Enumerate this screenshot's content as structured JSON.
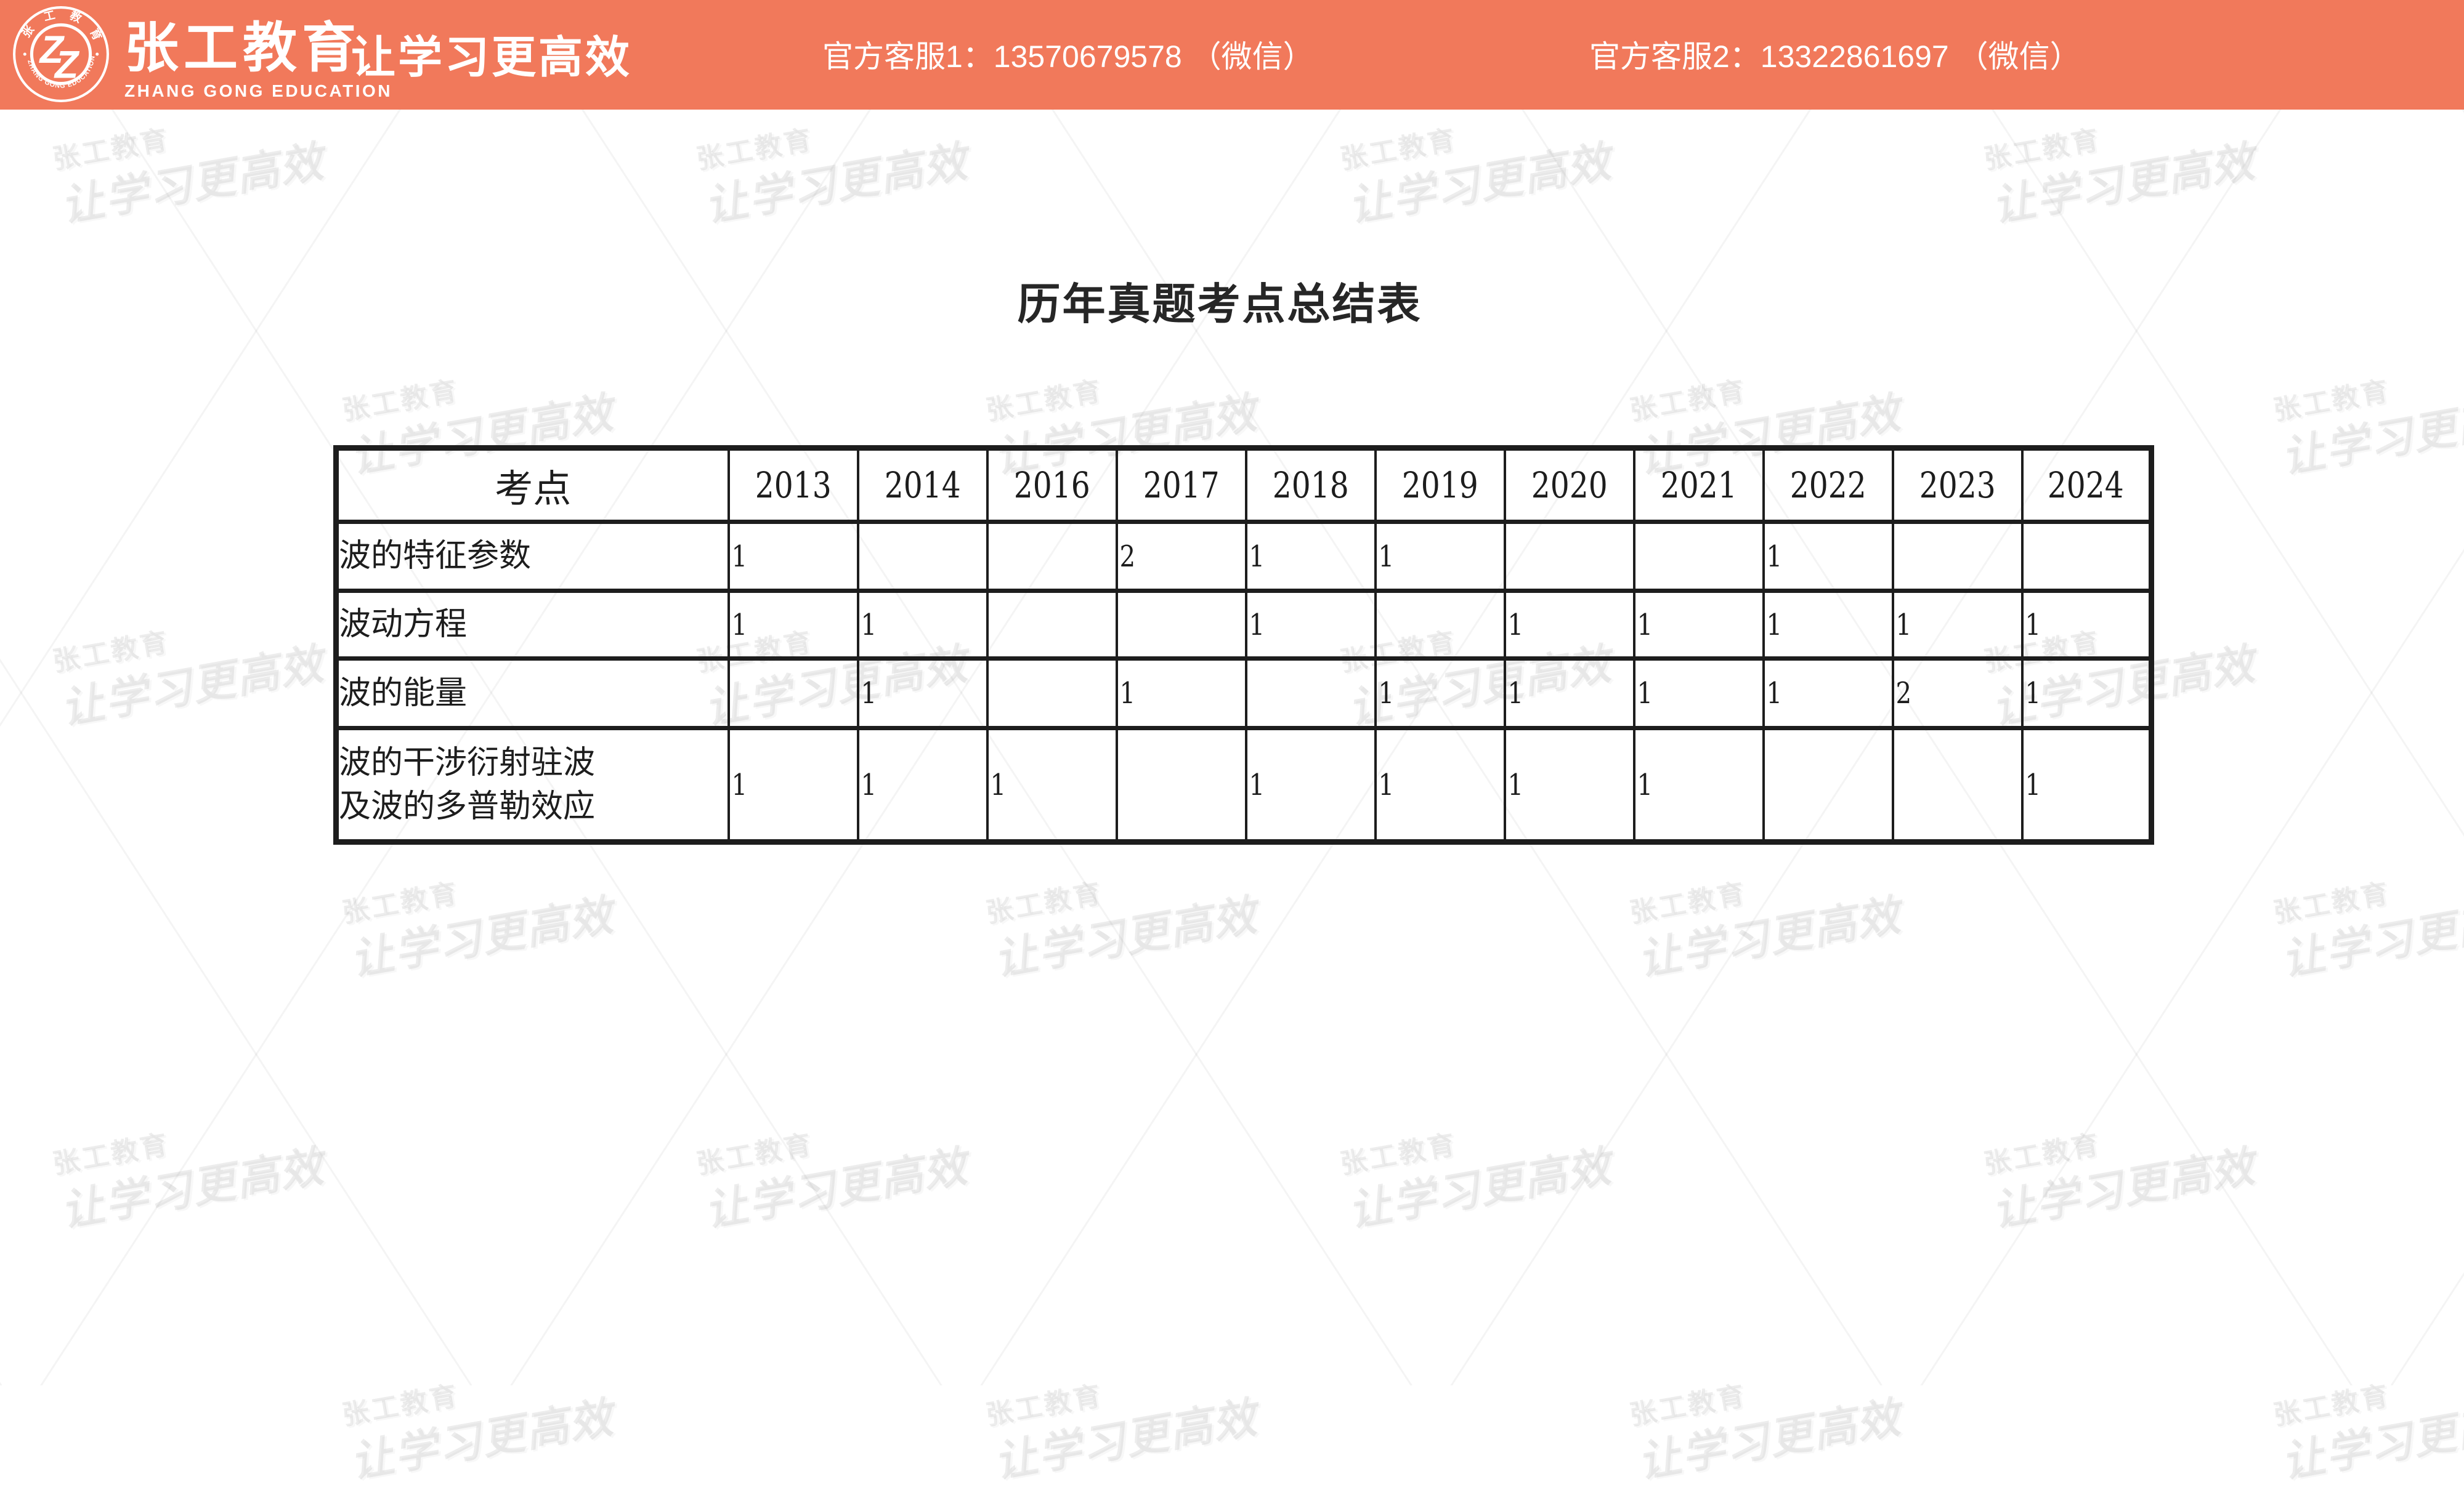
{
  "header": {
    "bg_color": "#F1795B",
    "logo_monogram": "ZZ",
    "logo_arc_top": "张 工 教 育",
    "logo_arc_bottom": "ZHANG GONG EDUCATION",
    "brand_cn": "张工教育",
    "brand_en": "ZHANG GONG EDUCATION",
    "brand_slogan": "让学习更高效",
    "service1": "官方客服1：13570679578 （微信）",
    "service2": "官方客服2：13322861697 （微信）"
  },
  "title": "历年真题考点总结表",
  "watermark": {
    "line1": "张工教育",
    "line2": "让学习更高效"
  },
  "table": {
    "header_label": "考点",
    "years": [
      "2013",
      "2014",
      "2016",
      "2017",
      "2018",
      "2019",
      "2020",
      "2021",
      "2022",
      "2023",
      "2024"
    ],
    "rows": [
      {
        "label": "波的特征参数",
        "label_lines": [
          "波的特征参数"
        ],
        "values": [
          "1",
          "",
          "",
          "2",
          "1",
          "1",
          "",
          "",
          "1",
          "",
          ""
        ]
      },
      {
        "label": "波动方程",
        "label_lines": [
          "波动方程"
        ],
        "values": [
          "1",
          "1",
          "",
          "",
          "1",
          "",
          "1",
          "1",
          "1",
          "1",
          "1"
        ]
      },
      {
        "label": "波的能量",
        "label_lines": [
          "波的能量"
        ],
        "values": [
          "",
          "1",
          "",
          "1",
          "",
          "1",
          "1",
          "1",
          "1",
          "2",
          "1"
        ]
      },
      {
        "label": "波的干涉衍射驻波及波的多普勒效应",
        "label_lines": [
          "波的干涉衍射驻波",
          "及波的多普勒效应"
        ],
        "values": [
          "1",
          "1",
          "1",
          "",
          "1",
          "1",
          "1",
          "1",
          "",
          "",
          "1"
        ]
      }
    ]
  }
}
